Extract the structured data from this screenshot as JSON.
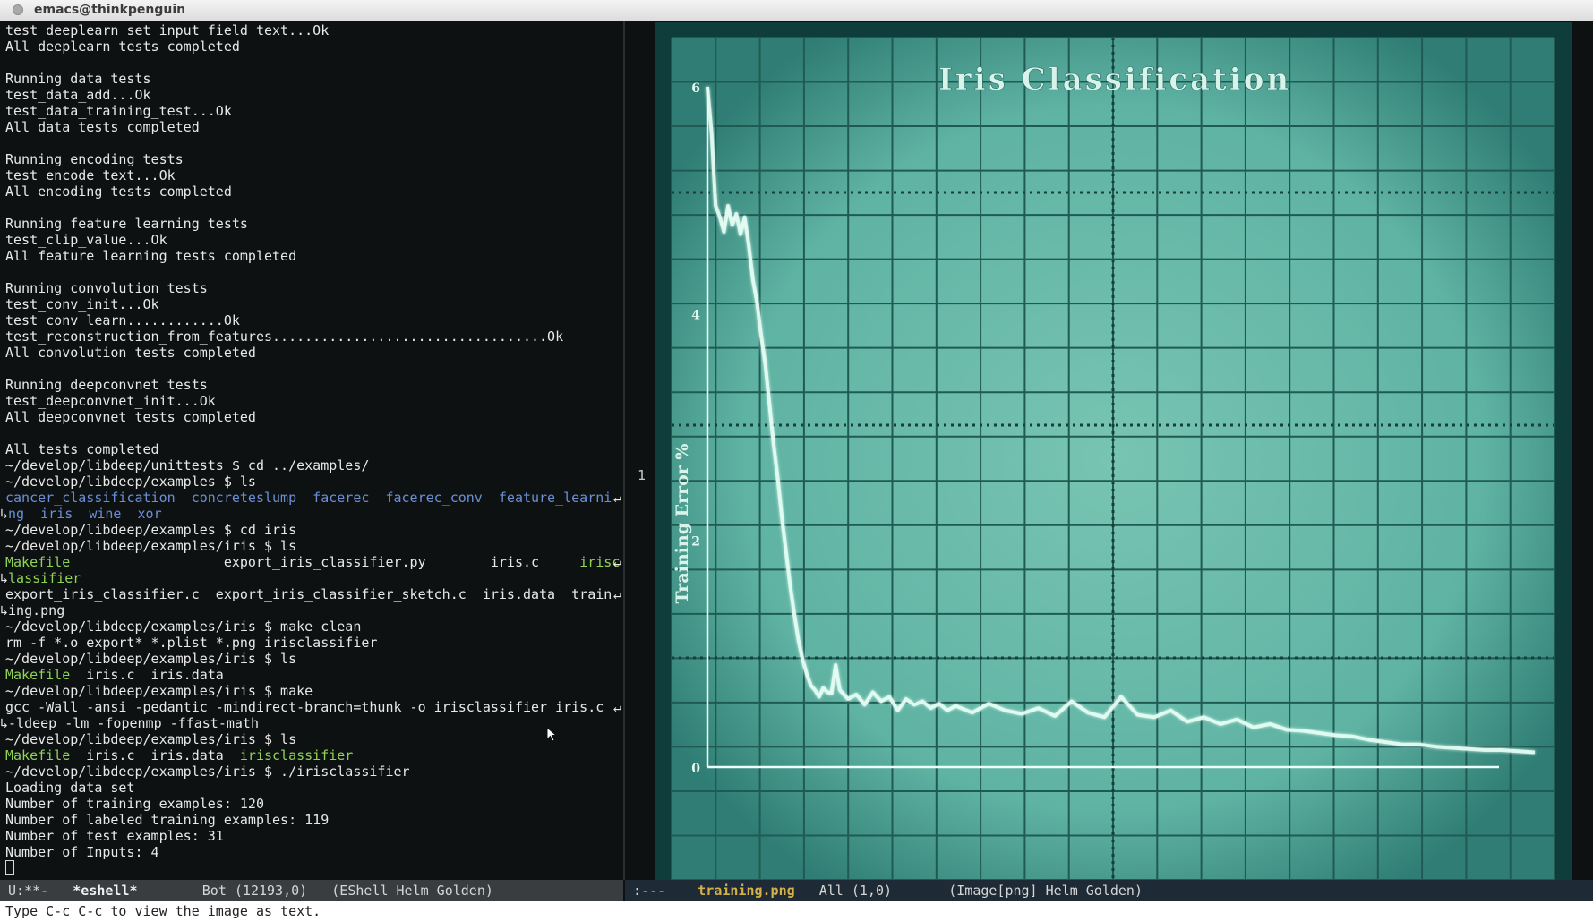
{
  "window": {
    "title": "emacs@thinkpenguin"
  },
  "terminal": {
    "lines": [
      [
        {
          "t": "test_deeplearn_set_input_field_text...Ok"
        }
      ],
      [
        {
          "t": "All deeplearn tests completed"
        }
      ],
      [],
      [
        {
          "t": "Running data tests"
        }
      ],
      [
        {
          "t": "test_data_add...Ok"
        }
      ],
      [
        {
          "t": "test_data_training_test...Ok"
        }
      ],
      [
        {
          "t": "All data tests completed"
        }
      ],
      [],
      [
        {
          "t": "Running encoding tests"
        }
      ],
      [
        {
          "t": "test_encode_text...Ok"
        }
      ],
      [
        {
          "t": "All encoding tests completed"
        }
      ],
      [],
      [
        {
          "t": "Running feature learning tests"
        }
      ],
      [
        {
          "t": "test_clip_value...Ok"
        }
      ],
      [
        {
          "t": "All feature learning tests completed"
        }
      ],
      [],
      [
        {
          "t": "Running convolution tests"
        }
      ],
      [
        {
          "t": "test_conv_init...Ok"
        }
      ],
      [
        {
          "t": "test_conv_learn............Ok"
        }
      ],
      [
        {
          "t": "test_reconstruction_from_features..................................Ok"
        }
      ],
      [
        {
          "t": "All convolution tests completed"
        }
      ],
      [],
      [
        {
          "t": "Running deepconvnet tests"
        }
      ],
      [
        {
          "t": "test_deepconvnet_init...Ok"
        }
      ],
      [
        {
          "t": "All deepconvnet tests completed"
        }
      ],
      [],
      [
        {
          "t": "All tests completed"
        }
      ],
      [
        {
          "t": "~/develop/libdeep/unittests $ cd ../examples/"
        }
      ],
      [
        {
          "t": "~/develop/libdeep/examples $ ls"
        }
      ],
      [
        {
          "t": "cancer_classification  concreteslump  facerec  facerec_conv  feature_learni",
          "c": "dir"
        },
        {
          "t": "↵",
          "c": "wrap"
        }
      ],
      [
        {
          "t": "↳",
          "c": "lead"
        },
        {
          "t": "ng  iris  wine  xor",
          "c": "dir"
        }
      ],
      [
        {
          "t": "~/develop/libdeep/examples $ cd iris"
        }
      ],
      [
        {
          "t": "~/develop/libdeep/examples/iris $ ls"
        }
      ],
      [
        {
          "t": "Makefile",
          "c": "exe"
        },
        {
          "t": "                   export_iris_classifier.py        iris.c     "
        },
        {
          "t": "irisc",
          "c": "exe"
        },
        {
          "t": "↵",
          "c": "wrap"
        }
      ],
      [
        {
          "t": "↳",
          "c": "lead"
        },
        {
          "t": "lassifier",
          "c": "exe"
        }
      ],
      [
        {
          "t": "export_iris_classifier.c  export_iris_classifier_sketch.c  iris.data  train"
        },
        {
          "t": "↵",
          "c": "wrap"
        }
      ],
      [
        {
          "t": "↳",
          "c": "lead"
        },
        {
          "t": "ing.png"
        }
      ],
      [
        {
          "t": "~/develop/libdeep/examples/iris $ make clean"
        }
      ],
      [
        {
          "t": "rm -f *.o export* *.plist *.png irisclassifier"
        }
      ],
      [
        {
          "t": "~/develop/libdeep/examples/iris $ ls"
        }
      ],
      [
        {
          "t": "Makefile",
          "c": "exe"
        },
        {
          "t": "  iris.c  iris.data"
        }
      ],
      [
        {
          "t": "~/develop/libdeep/examples/iris $ make"
        }
      ],
      [
        {
          "t": "gcc -Wall -ansi -pedantic -mindirect-branch=thunk -o irisclassifier iris.c "
        },
        {
          "t": "↵",
          "c": "wrap"
        }
      ],
      [
        {
          "t": "↳",
          "c": "lead"
        },
        {
          "t": "-ldeep -lm -fopenmp -ffast-math"
        }
      ],
      [
        {
          "t": "~/develop/libdeep/examples/iris $ ls"
        }
      ],
      [
        {
          "t": "Makefile",
          "c": "exe"
        },
        {
          "t": "  iris.c  iris.data  "
        },
        {
          "t": "irisclassifier",
          "c": "exe"
        }
      ],
      [
        {
          "t": "~/develop/libdeep/examples/iris $ ./irisclassifier"
        }
      ],
      [
        {
          "t": "Loading data set"
        }
      ],
      [
        {
          "t": "Number of training examples: 120"
        }
      ],
      [
        {
          "t": "Number of labeled training examples: 119"
        }
      ],
      [
        {
          "t": "Number of test examples: 31"
        }
      ],
      [
        {
          "t": "Number of Inputs: 4"
        }
      ],
      [
        {
          "c": "cursor"
        }
      ]
    ]
  },
  "fringe": {
    "line_number": "1"
  },
  "chart_data": {
    "type": "line",
    "title": "Iris Classification",
    "ylabel": "Training Error %",
    "xlabel": "",
    "ylim": [
      0,
      6
    ],
    "xlim": [
      0,
      100
    ],
    "y_ticks": [
      "0",
      "2",
      "4",
      "6"
    ],
    "grid": true,
    "series": [
      {
        "x": [
          0,
          0.5,
          1,
          1.5,
          2,
          2.5,
          3,
          3.5,
          4,
          4.5,
          5,
          5.5,
          6,
          6.5,
          7,
          7.5,
          8,
          8.5,
          9,
          9.5,
          10,
          10.5,
          11,
          11.5,
          12,
          12.5,
          13,
          13.5,
          14,
          14.5,
          15,
          15.5,
          16,
          17,
          18,
          19,
          20,
          21,
          22,
          23,
          24,
          25,
          26,
          27,
          28,
          29,
          30,
          32,
          34,
          36,
          38,
          40,
          42,
          44,
          46,
          48,
          50,
          52,
          54,
          56,
          58,
          60,
          62,
          64,
          66,
          68,
          70,
          72,
          74,
          76,
          78,
          80,
          82,
          84,
          86,
          88,
          90,
          92,
          94,
          96,
          98,
          100
        ],
        "y": [
          6.0,
          5.6,
          4.95,
          4.85,
          4.72,
          4.95,
          4.78,
          4.88,
          4.7,
          4.85,
          4.6,
          4.3,
          4.1,
          3.8,
          3.55,
          3.2,
          2.85,
          2.55,
          2.2,
          1.9,
          1.6,
          1.35,
          1.12,
          0.95,
          0.82,
          0.72,
          0.68,
          0.62,
          0.7,
          0.66,
          0.65,
          0.9,
          0.68,
          0.6,
          0.64,
          0.55,
          0.66,
          0.58,
          0.62,
          0.5,
          0.6,
          0.55,
          0.58,
          0.52,
          0.56,
          0.5,
          0.54,
          0.48,
          0.56,
          0.5,
          0.47,
          0.52,
          0.45,
          0.58,
          0.48,
          0.44,
          0.62,
          0.46,
          0.44,
          0.5,
          0.4,
          0.44,
          0.38,
          0.42,
          0.35,
          0.38,
          0.33,
          0.32,
          0.3,
          0.28,
          0.27,
          0.24,
          0.22,
          0.2,
          0.2,
          0.18,
          0.17,
          0.16,
          0.15,
          0.15,
          0.14,
          0.13
        ]
      }
    ]
  },
  "modeline_left": {
    "status": " U:**-",
    "buffer": "*eshell*",
    "position": "Bot (12193,0)",
    "modes": "(EShell Helm Golden)"
  },
  "modeline_right": {
    "status": " :---",
    "buffer": "training.png",
    "position": "All (1,0)",
    "modes": "(Image[png] Helm Golden)"
  },
  "echo_area": {
    "message": "Type C-c C-c to view the image as text."
  },
  "colors": {
    "directory": "#6b8fd6",
    "executable": "#8fd357",
    "chart_background": "#5fb3a3",
    "trace": "#e8fff6"
  }
}
